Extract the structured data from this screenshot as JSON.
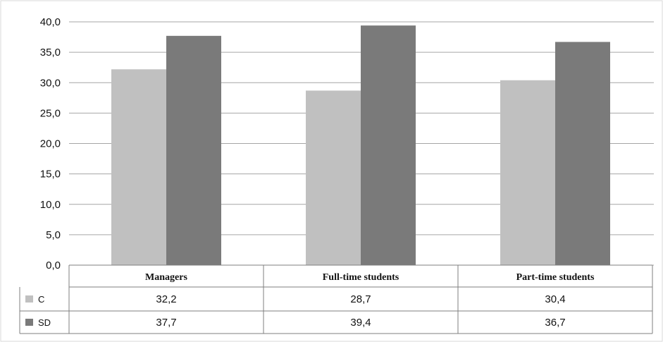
{
  "chart_data": {
    "type": "bar",
    "categories": [
      "Managers",
      "Full-time students",
      "Part-time students"
    ],
    "series": [
      {
        "name": "C",
        "values": [
          32.2,
          28.7,
          30.4
        ],
        "value_labels": [
          "32,2",
          "28,7",
          "30,4"
        ],
        "color": "#c0c0c0"
      },
      {
        "name": "SD",
        "values": [
          37.7,
          39.4,
          36.7
        ],
        "value_labels": [
          "37,7",
          "39,4",
          "36,7"
        ],
        "color": "#7a7a7a"
      }
    ],
    "ylim": [
      0,
      40
    ],
    "yticks": [
      "0,0",
      "5,0",
      "10,0",
      "15,0",
      "20,0",
      "25,0",
      "30,0",
      "35,0",
      "40,0"
    ],
    "grid": true,
    "legend": "data-table",
    "title": "",
    "xlabel": "",
    "ylabel": ""
  }
}
